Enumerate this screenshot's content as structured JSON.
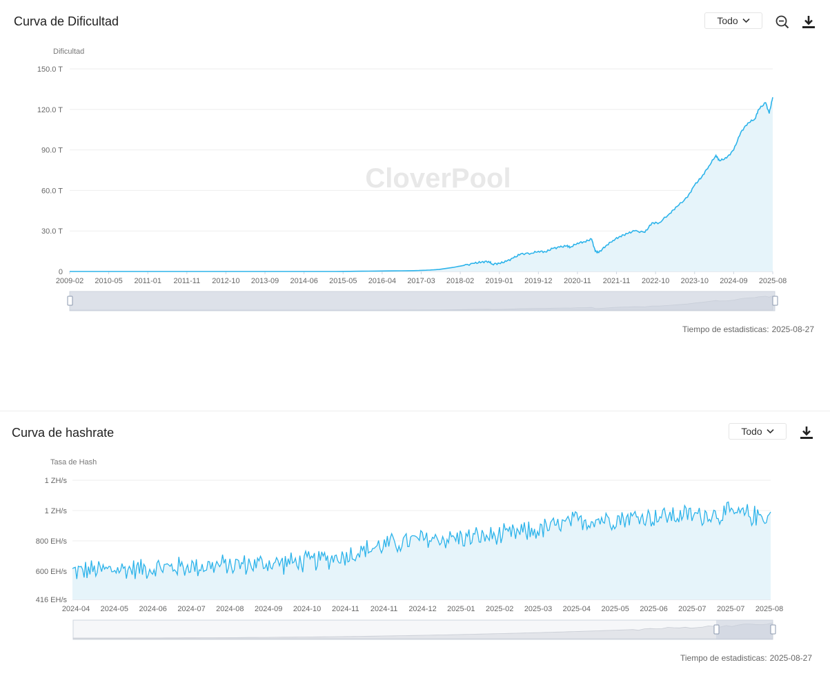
{
  "difficulty": {
    "title": "Curva de Dificultad",
    "period_label": "Todo",
    "icons": [
      "chevron-down-icon",
      "zoom-out-icon",
      "download-icon"
    ],
    "stats_time_label": "Tiempo de estadisticas:",
    "stats_time_value": "2025-08-27",
    "watermark": "CloverPool",
    "chart_data": {
      "type": "area",
      "title": "Curva de Dificultad",
      "ylabel": "Dificultad",
      "ylim": [
        0,
        150
      ],
      "yunit": "T",
      "yticks": [
        "0",
        "30.0 T",
        "60.0 T",
        "90.0 T",
        "120.0 T",
        "150.0 T"
      ],
      "ytick_values": [
        0,
        30,
        60,
        90,
        120,
        150
      ],
      "xticks": [
        "2009-02",
        "2010-05",
        "2011-01",
        "2011-11",
        "2012-10",
        "2013-09",
        "2014-06",
        "2015-05",
        "2016-04",
        "2017-03",
        "2018-02",
        "2019-01",
        "2019-12",
        "2020-11",
        "2021-11",
        "2022-10",
        "2023-10",
        "2024-09",
        "2025-08"
      ],
      "series": [
        {
          "x": [
            "2009-02",
            "2010-05",
            "2011-01",
            "2011-11",
            "2012-10",
            "2013-09",
            "2014-06",
            "2015-05",
            "2016-04",
            "2017-03",
            "2017-07",
            "2017-10",
            "2018-02",
            "2018-05",
            "2018-08",
            "2018-10",
            "2018-12",
            "2019-01",
            "2019-03",
            "2019-05",
            "2019-07",
            "2019-09",
            "2019-12",
            "2020-02",
            "2020-04",
            "2020-06",
            "2020-08",
            "2020-10",
            "2020-11",
            "2021-01",
            "2021-03",
            "2021-05",
            "2021-06",
            "2021-07",
            "2021-09",
            "2021-11",
            "2022-01",
            "2022-03",
            "2022-05",
            "2022-08",
            "2022-10",
            "2022-12",
            "2023-03",
            "2023-05",
            "2023-08",
            "2023-10",
            "2023-12",
            "2024-02",
            "2024-04",
            "2024-05",
            "2024-07",
            "2024-09",
            "2024-11",
            "2025-01",
            "2025-03",
            "2025-04",
            "2025-06",
            "2025-07",
            "2025-08"
          ],
          "values": [
            0,
            0,
            0,
            0,
            0,
            0,
            0,
            0,
            0.3,
            0.6,
            1.0,
            1.5,
            3,
            4.5,
            6,
            7,
            7.5,
            5.5,
            6,
            7.5,
            10,
            13,
            13.5,
            15,
            14.5,
            17,
            18,
            19,
            18,
            21,
            22,
            24,
            15,
            14,
            19,
            23,
            26,
            28,
            30,
            29,
            36,
            36,
            43,
            48,
            55,
            64,
            70,
            78,
            86,
            82,
            84,
            90,
            103,
            110,
            113,
            120,
            125,
            117,
            129
          ]
        }
      ]
    }
  },
  "hashrate": {
    "title": "Curva de hashrate",
    "period_label": "Todo",
    "icons": [
      "chevron-down-icon",
      "download-icon"
    ],
    "stats_time_label": "Tiempo de estadisticas:",
    "stats_time_value": "2025-08-27",
    "chart_data": {
      "type": "area",
      "title": "Curva de hashrate",
      "ylabel": "Tasa de Hash",
      "yunit": "EH/s",
      "ylim": [
        416,
        1200
      ],
      "yticks": [
        "416 EH/s",
        "600 EH/s",
        "800 EH/s",
        "1 ZH/s",
        "1 ZH/s"
      ],
      "ytick_values": [
        416,
        600,
        800,
        1000,
        1200
      ],
      "xticks": [
        "2024-04",
        "2024-05",
        "2024-06",
        "2024-07",
        "2024-08",
        "2024-09",
        "2024-10",
        "2024-11",
        "2024-11",
        "2024-12",
        "2025-01",
        "2025-02",
        "2025-03",
        "2025-04",
        "2025-05",
        "2025-06",
        "2025-07",
        "2025-07",
        "2025-08"
      ],
      "series": [
        {
          "x_start": "2024-04",
          "x_end": "2025-08",
          "trend": [
            600,
            610,
            620,
            630,
            640,
            650,
            660,
            700,
            770,
            810,
            820,
            830,
            870,
            930,
            950,
            960,
            970,
            980,
            960
          ],
          "noise_amplitude": 70,
          "points": 480
        }
      ]
    }
  }
}
